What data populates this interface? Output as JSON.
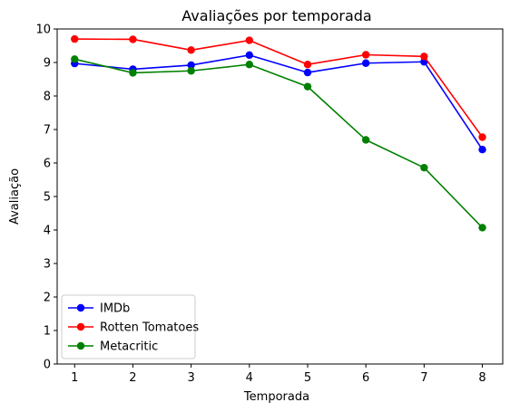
{
  "chart_data": {
    "type": "line",
    "title": "Avaliações por temporada",
    "xlabel": "Temporada",
    "ylabel": "Avaliação",
    "x": [
      1,
      2,
      3,
      4,
      5,
      6,
      7,
      8
    ],
    "xlim": [
      0.7,
      8.35
    ],
    "ylim": [
      0,
      10
    ],
    "xticks": [
      "1",
      "2",
      "3",
      "4",
      "5",
      "6",
      "7",
      "8"
    ],
    "yticks": [
      "0",
      "1",
      "2",
      "3",
      "4",
      "5",
      "6",
      "7",
      "8",
      "9",
      "10"
    ],
    "grid": false,
    "legend_position": "lower-left",
    "series": [
      {
        "name": "IMDb",
        "color": "#0000ff",
        "values": [
          8.97,
          8.8,
          8.92,
          9.22,
          8.7,
          8.98,
          9.02,
          6.4
        ]
      },
      {
        "name": "Rotten Tomatoes",
        "color": "#ff0000",
        "values": [
          9.7,
          9.69,
          9.37,
          9.66,
          8.94,
          9.23,
          9.18,
          6.77
        ]
      },
      {
        "name": "Metacritic",
        "color": "#008000",
        "values": [
          9.1,
          8.69,
          8.75,
          8.94,
          8.28,
          6.69,
          5.86,
          4.07
        ]
      }
    ]
  }
}
